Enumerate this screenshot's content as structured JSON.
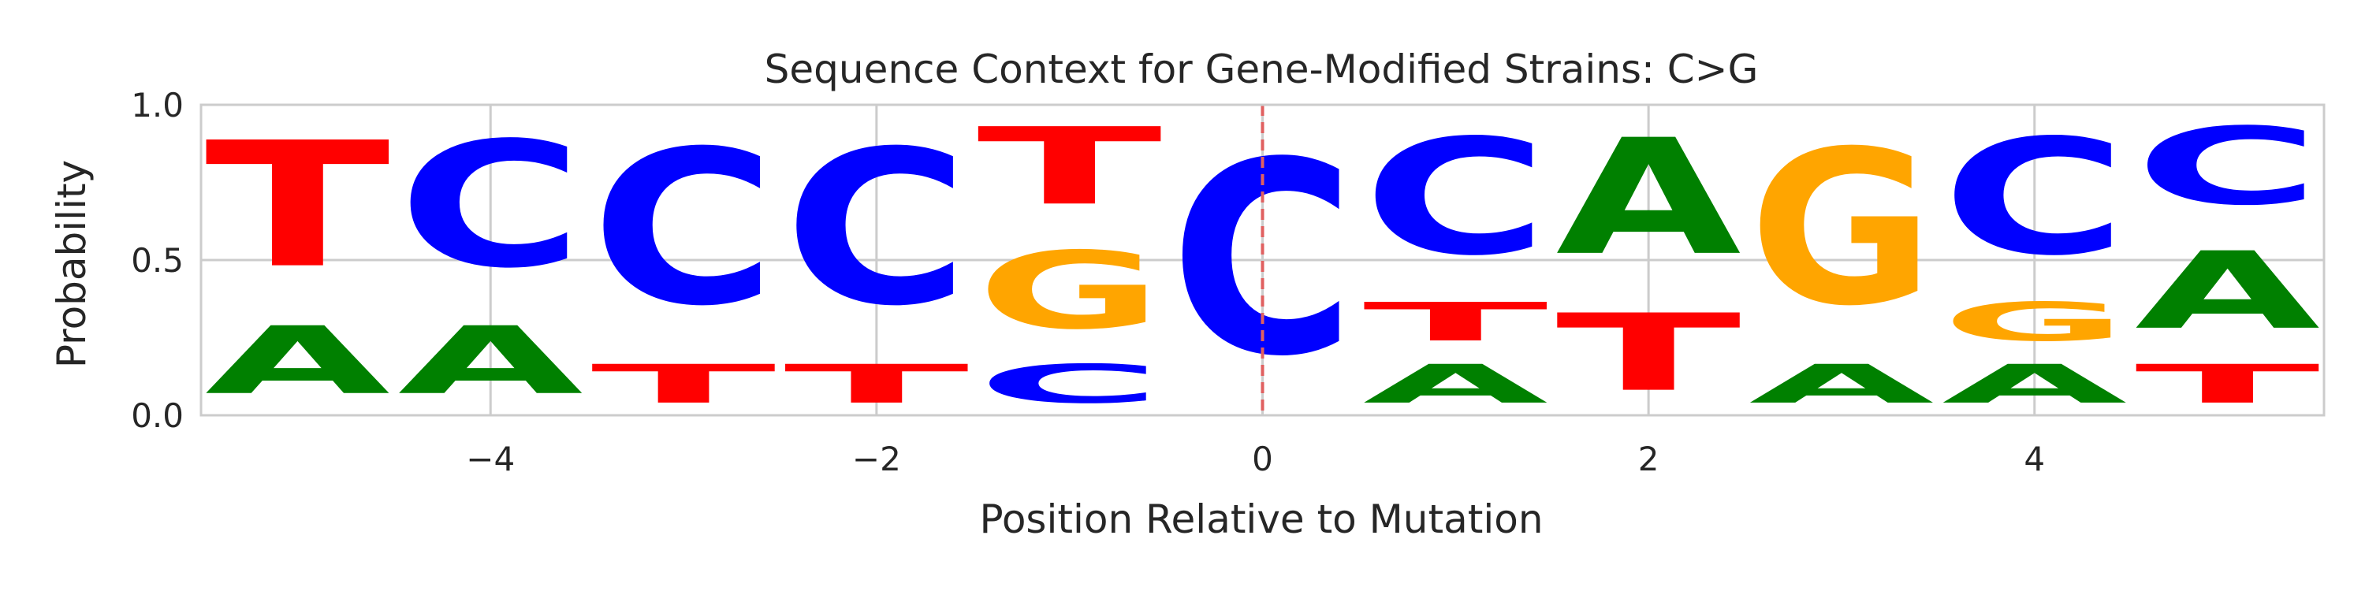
{
  "chart_data": {
    "type": "sequence-logo",
    "title": "Sequence Context for Gene-Modified Strains: C>G",
    "xlabel": "Position Relative to Mutation",
    "ylabel": "Probability",
    "xlim": [
      -5.5,
      5.5
    ],
    "ylim": [
      0,
      1
    ],
    "x_ticks": [
      -4,
      -2,
      0,
      2,
      4
    ],
    "x_tick_labels": [
      "−4",
      "−2",
      "0",
      "2",
      "4"
    ],
    "y_ticks": [
      0,
      0.5,
      1
    ],
    "y_tick_labels": [
      "0.0",
      "0.5",
      "1.0"
    ],
    "grid": true,
    "mutation_marker_position": 0,
    "colors": {
      "A": "#008000",
      "C": "#0000ff",
      "G": "#ffa500",
      "T": "#ff0000",
      "marker": "#e06060"
    },
    "positions": [
      {
        "position": -5,
        "letters": [
          {
            "base": "A",
            "value": 0.35
          },
          {
            "base": "T",
            "value": 0.65
          }
        ]
      },
      {
        "position": -4,
        "letters": [
          {
            "base": "A",
            "value": 0.35
          },
          {
            "base": "C",
            "value": 0.65
          }
        ]
      },
      {
        "position": -3,
        "letters": [
          {
            "base": "T",
            "value": 0.2
          },
          {
            "base": "C",
            "value": 0.8
          }
        ]
      },
      {
        "position": -2,
        "letters": [
          {
            "base": "T",
            "value": 0.2
          },
          {
            "base": "C",
            "value": 0.8
          }
        ]
      },
      {
        "position": -1,
        "letters": [
          {
            "base": "C",
            "value": 0.2
          },
          {
            "base": "G",
            "value": 0.4
          },
          {
            "base": "T",
            "value": 0.4
          }
        ]
      },
      {
        "position": 0,
        "letters": [
          {
            "base": "C",
            "value": 1.0
          }
        ]
      },
      {
        "position": 1,
        "letters": [
          {
            "base": "A",
            "value": 0.2
          },
          {
            "base": "T",
            "value": 0.2
          },
          {
            "base": "C",
            "value": 0.6
          }
        ]
      },
      {
        "position": 2,
        "letters": [
          {
            "base": "T",
            "value": 0.4
          },
          {
            "base": "A",
            "value": 0.6
          }
        ]
      },
      {
        "position": 3,
        "letters": [
          {
            "base": "A",
            "value": 0.2
          },
          {
            "base": "G",
            "value": 0.8
          }
        ]
      },
      {
        "position": 4,
        "letters": [
          {
            "base": "A",
            "value": 0.2
          },
          {
            "base": "G",
            "value": 0.2
          },
          {
            "base": "C",
            "value": 0.6
          }
        ]
      },
      {
        "position": 5,
        "letters": [
          {
            "base": "T",
            "value": 0.2
          },
          {
            "base": "A",
            "value": 0.4
          },
          {
            "base": "C",
            "value": 0.4
          }
        ]
      }
    ]
  }
}
